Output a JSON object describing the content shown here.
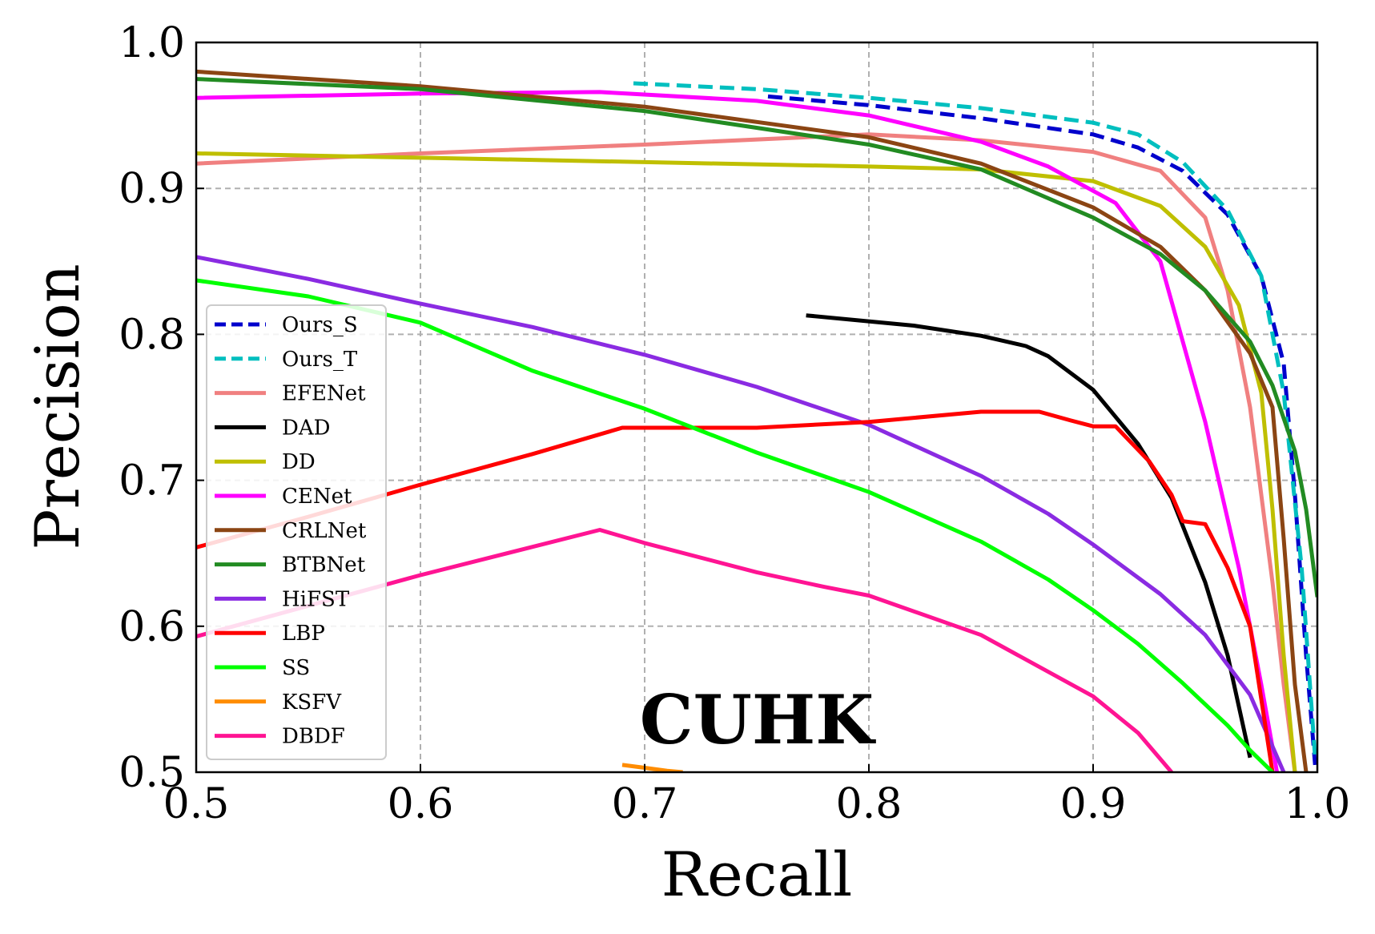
{
  "chart_data": {
    "type": "line",
    "title": "",
    "annotation": "CUHK",
    "xlabel": "Recall",
    "ylabel": "Precision",
    "xlim": [
      0.5,
      1.0
    ],
    "ylim": [
      0.5,
      1.0
    ],
    "xticks": [
      {
        "value": 0.5,
        "label": "0.5"
      },
      {
        "value": 0.6,
        "label": "0.6"
      },
      {
        "value": 0.7,
        "label": "0.7"
      },
      {
        "value": 0.8,
        "label": "0.8"
      },
      {
        "value": 0.9,
        "label": "0.9"
      },
      {
        "value": 1.0,
        "label": "1.0"
      }
    ],
    "yticks": [
      {
        "value": 0.5,
        "label": "0.5"
      },
      {
        "value": 0.6,
        "label": "0.6"
      },
      {
        "value": 0.7,
        "label": "0.7"
      },
      {
        "value": 0.8,
        "label": "0.8"
      },
      {
        "value": 0.9,
        "label": "0.9"
      },
      {
        "value": 1.0,
        "label": "1.0"
      }
    ],
    "grid": true,
    "legend_position": "left",
    "series": [
      {
        "name": "Ours_S",
        "color": "#0000cc",
        "dash": "dashed",
        "x": [
          0.755,
          0.8,
          0.85,
          0.9,
          0.92,
          0.94,
          0.96,
          0.975,
          0.985,
          0.99,
          0.995,
          0.999
        ],
        "y": [
          0.963,
          0.957,
          0.948,
          0.937,
          0.928,
          0.912,
          0.882,
          0.84,
          0.78,
          0.69,
          0.58,
          0.505
        ]
      },
      {
        "name": "Ours_T",
        "color": "#00bfbf",
        "dash": "dashed",
        "x": [
          0.695,
          0.75,
          0.8,
          0.85,
          0.9,
          0.92,
          0.94,
          0.96,
          0.975,
          0.985,
          0.993,
          0.999
        ],
        "y": [
          0.972,
          0.968,
          0.962,
          0.955,
          0.945,
          0.937,
          0.918,
          0.885,
          0.84,
          0.76,
          0.64,
          0.51
        ]
      },
      {
        "name": "EFENet",
        "color": "#f08080",
        "dash": "solid",
        "x": [
          0.5,
          0.6,
          0.7,
          0.8,
          0.85,
          0.9,
          0.93,
          0.95,
          0.96,
          0.97,
          0.98,
          0.985,
          0.99
        ],
        "y": [
          0.917,
          0.924,
          0.93,
          0.937,
          0.933,
          0.925,
          0.912,
          0.88,
          0.83,
          0.75,
          0.63,
          0.56,
          0.5
        ]
      },
      {
        "name": "DAD",
        "color": "#000000",
        "dash": "solid",
        "x": [
          0.772,
          0.82,
          0.85,
          0.87,
          0.88,
          0.9,
          0.92,
          0.935,
          0.95,
          0.96,
          0.97
        ],
        "y": [
          0.813,
          0.806,
          0.799,
          0.792,
          0.785,
          0.762,
          0.725,
          0.688,
          0.63,
          0.58,
          0.51
        ]
      },
      {
        "name": "DD",
        "color": "#bfbf00",
        "dash": "solid",
        "x": [
          0.5,
          0.6,
          0.7,
          0.8,
          0.85,
          0.9,
          0.93,
          0.95,
          0.965,
          0.975,
          0.98,
          0.985,
          0.99
        ],
        "y": [
          0.924,
          0.921,
          0.918,
          0.915,
          0.913,
          0.905,
          0.888,
          0.86,
          0.82,
          0.76,
          0.68,
          0.58,
          0.5
        ]
      },
      {
        "name": "CENet",
        "color": "#ff00ff",
        "dash": "solid",
        "x": [
          0.5,
          0.6,
          0.68,
          0.75,
          0.8,
          0.85,
          0.88,
          0.91,
          0.93,
          0.95,
          0.965,
          0.975,
          0.982
        ],
        "y": [
          0.962,
          0.965,
          0.966,
          0.96,
          0.95,
          0.932,
          0.915,
          0.89,
          0.85,
          0.74,
          0.64,
          0.56,
          0.5
        ]
      },
      {
        "name": "CRLNet",
        "color": "#8b4513",
        "dash": "solid",
        "x": [
          0.5,
          0.6,
          0.7,
          0.8,
          0.85,
          0.9,
          0.93,
          0.95,
          0.97,
          0.98,
          0.985,
          0.99,
          0.995
        ],
        "y": [
          0.98,
          0.97,
          0.956,
          0.935,
          0.917,
          0.887,
          0.86,
          0.83,
          0.787,
          0.75,
          0.66,
          0.56,
          0.5
        ]
      },
      {
        "name": "BTBNet",
        "color": "#228b22",
        "dash": "solid",
        "x": [
          0.5,
          0.6,
          0.7,
          0.8,
          0.85,
          0.9,
          0.93,
          0.95,
          0.97,
          0.98,
          0.99,
          0.995,
          1.0
        ],
        "y": [
          0.975,
          0.968,
          0.953,
          0.93,
          0.913,
          0.88,
          0.855,
          0.83,
          0.795,
          0.765,
          0.72,
          0.68,
          0.62
        ]
      },
      {
        "name": "HiFST",
        "color": "#8a2be2",
        "dash": "solid",
        "x": [
          0.5,
          0.55,
          0.6,
          0.65,
          0.7,
          0.75,
          0.8,
          0.85,
          0.88,
          0.9,
          0.93,
          0.95,
          0.97,
          0.985
        ],
        "y": [
          0.853,
          0.838,
          0.821,
          0.805,
          0.786,
          0.764,
          0.738,
          0.703,
          0.677,
          0.656,
          0.622,
          0.594,
          0.553,
          0.5
        ]
      },
      {
        "name": "LBP",
        "color": "#ff0000",
        "dash": "solid",
        "x": [
          0.5,
          0.55,
          0.6,
          0.65,
          0.69,
          0.7,
          0.75,
          0.8,
          0.85,
          0.876,
          0.89,
          0.9,
          0.91,
          0.925,
          0.935,
          0.94,
          0.95,
          0.96,
          0.97,
          0.975,
          0.98
        ],
        "y": [
          0.654,
          0.675,
          0.697,
          0.718,
          0.736,
          0.736,
          0.736,
          0.74,
          0.747,
          0.747,
          0.741,
          0.737,
          0.737,
          0.713,
          0.69,
          0.672,
          0.67,
          0.64,
          0.6,
          0.55,
          0.5
        ]
      },
      {
        "name": "SS",
        "color": "#00ff00",
        "dash": "solid",
        "x": [
          0.5,
          0.55,
          0.6,
          0.65,
          0.7,
          0.75,
          0.8,
          0.85,
          0.88,
          0.9,
          0.92,
          0.94,
          0.96,
          0.97,
          0.98
        ],
        "y": [
          0.837,
          0.826,
          0.808,
          0.775,
          0.749,
          0.719,
          0.692,
          0.658,
          0.632,
          0.611,
          0.588,
          0.561,
          0.532,
          0.515,
          0.5
        ]
      },
      {
        "name": "KSFV",
        "color": "#ff8c00",
        "dash": "solid",
        "x": [
          0.69,
          0.7,
          0.71,
          0.717
        ],
        "y": [
          0.505,
          0.503,
          0.501,
          0.5
        ]
      },
      {
        "name": "DBDF",
        "color": "#ff1493",
        "dash": "solid",
        "x": [
          0.5,
          0.6,
          0.68,
          0.7,
          0.75,
          0.78,
          0.8,
          0.85,
          0.9,
          0.92,
          0.935
        ],
        "y": [
          0.593,
          0.635,
          0.666,
          0.657,
          0.637,
          0.627,
          0.621,
          0.594,
          0.552,
          0.527,
          0.5
        ]
      }
    ]
  }
}
